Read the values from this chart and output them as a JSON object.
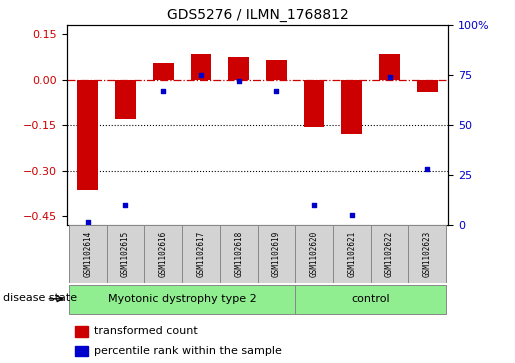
{
  "title": "GDS5276 / ILMN_1768812",
  "samples": [
    "GSM1102614",
    "GSM1102615",
    "GSM1102616",
    "GSM1102617",
    "GSM1102618",
    "GSM1102619",
    "GSM1102620",
    "GSM1102621",
    "GSM1102622",
    "GSM1102623"
  ],
  "red_values": [
    -0.365,
    -0.13,
    0.055,
    0.085,
    0.075,
    0.065,
    -0.155,
    -0.18,
    0.085,
    -0.04
  ],
  "blue_values": [
    1.5,
    10.0,
    67.0,
    75.0,
    72.0,
    67.0,
    10.0,
    5.0,
    74.0,
    28.0
  ],
  "groups": [
    {
      "label": "Myotonic dystrophy type 2",
      "start": 0,
      "end": 5,
      "color": "#90ee90"
    },
    {
      "label": "control",
      "start": 6,
      "end": 9,
      "color": "#90ee90"
    }
  ],
  "ylim_left": [
    -0.48,
    0.18
  ],
  "ylim_right": [
    0,
    100
  ],
  "yticks_left": [
    0.15,
    0.0,
    -0.15,
    -0.3,
    -0.45
  ],
  "yticks_right": [
    100,
    75,
    50,
    25,
    0
  ],
  "hline_y": 0,
  "dotted_lines": [
    -0.15,
    -0.3
  ],
  "legend_items": [
    {
      "label": "transformed count",
      "color": "#cc0000"
    },
    {
      "label": "percentile rank within the sample",
      "color": "#0000cc"
    }
  ],
  "disease_state_label": "disease state",
  "bar_color": "#cc0000",
  "dot_color": "#0000cc",
  "bar_width": 0.55,
  "fig_width": 5.15,
  "fig_height": 3.63,
  "dpi": 100
}
